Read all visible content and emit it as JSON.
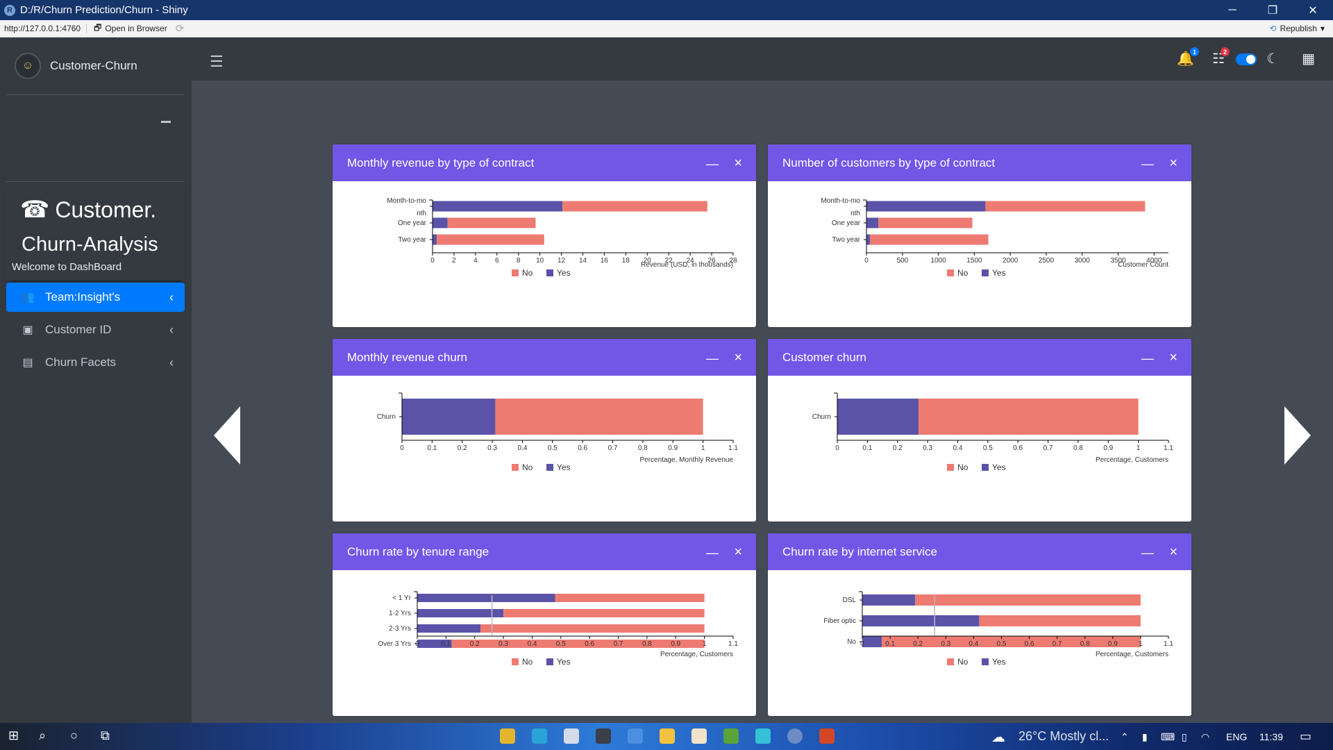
{
  "window": {
    "title": "D:/R/Churn Prediction/Churn - Shiny",
    "minimize": "─",
    "restore": "❐",
    "close": "✕"
  },
  "addressbar": {
    "url": "http://127.0.0.1:4760",
    "open_in_browser": "Open in Browser",
    "republish": "Republish"
  },
  "sidebar": {
    "brand": "Customer-Churn",
    "title_line1": "Customer.",
    "title_line2": "Churn-Analysis",
    "welcome": "Welcome to DashBoard",
    "items": [
      {
        "label": "Team:Insight's",
        "icon": "users-icon",
        "active": true
      },
      {
        "label": "Customer ID",
        "icon": "id-badge-icon",
        "active": false
      },
      {
        "label": "Churn Facets",
        "icon": "id-card-icon",
        "active": false
      }
    ]
  },
  "header": {
    "notifications_count": "1",
    "tasks_count": "2"
  },
  "colors": {
    "no": "#ed7b72",
    "yes": "#5a53a8",
    "card_header": "#7256e6",
    "accent": "#007bff"
  },
  "legend": {
    "no": "No",
    "yes": "Yes"
  },
  "chart_data": [
    {
      "id": "c1",
      "title": "Monthly revenue by type of contract",
      "type": "bar",
      "stacked": true,
      "orientation": "horizontal",
      "categories": [
        "Month-to-mo nth",
        "One year",
        "Two year"
      ],
      "series": [
        {
          "name": "Yes",
          "values": [
            12.1,
            1.4,
            0.4
          ]
        },
        {
          "name": "No",
          "values": [
            13.5,
            8.2,
            10.0
          ]
        }
      ],
      "xlabel": "Revenue (USD, in thousands)",
      "xlim": [
        0,
        28
      ],
      "xticks": [
        0,
        2,
        4,
        6,
        8,
        10,
        12,
        14,
        16,
        18,
        20,
        22,
        24,
        26,
        28
      ]
    },
    {
      "id": "c2",
      "title": "Number of customers by type of contract",
      "type": "bar",
      "stacked": true,
      "orientation": "horizontal",
      "categories": [
        "Month-to-mo nth",
        "One year",
        "Two year"
      ],
      "series": [
        {
          "name": "Yes",
          "values": [
            1655,
            166,
            48
          ]
        },
        {
          "name": "No",
          "values": [
            2220,
            1307,
            1647
          ]
        }
      ],
      "xlabel": "Customer Count",
      "xlim": [
        0,
        4200
      ],
      "xticks": [
        0,
        500,
        1000,
        1500,
        2000,
        2500,
        3000,
        3500,
        4000
      ]
    },
    {
      "id": "c3",
      "title": "Monthly revenue churn",
      "type": "bar",
      "stacked": true,
      "orientation": "horizontal",
      "categories": [
        "Churn"
      ],
      "series": [
        {
          "name": "Yes",
          "values": [
            0.31
          ]
        },
        {
          "name": "No",
          "values": [
            0.69
          ]
        }
      ],
      "xlabel": "Percentage, Monthly Revenue",
      "xlim": [
        0,
        1.1
      ],
      "xticks": [
        0,
        0.1,
        0.2,
        0.3,
        0.4,
        0.5,
        0.6,
        0.7,
        0.8,
        0.9,
        1,
        1.1
      ]
    },
    {
      "id": "c4",
      "title": "Customer churn",
      "type": "bar",
      "stacked": true,
      "orientation": "horizontal",
      "categories": [
        "Churn"
      ],
      "series": [
        {
          "name": "Yes",
          "values": [
            0.27
          ]
        },
        {
          "name": "No",
          "values": [
            0.73
          ]
        }
      ],
      "xlabel": "Percentage, Customers",
      "xlim": [
        0,
        1.1
      ],
      "xticks": [
        0,
        0.1,
        0.2,
        0.3,
        0.4,
        0.5,
        0.6,
        0.7,
        0.8,
        0.9,
        1,
        1.1
      ]
    },
    {
      "id": "c5",
      "title": "Churn rate by tenure range",
      "type": "bar",
      "stacked": true,
      "orientation": "horizontal",
      "categories": [
        "< 1 Yr",
        "1-2 Yrs",
        "2-3 Yrs",
        "Over 3 Yrs"
      ],
      "series": [
        {
          "name": "Yes",
          "values": [
            0.48,
            0.3,
            0.22,
            0.12
          ]
        },
        {
          "name": "No",
          "values": [
            0.52,
            0.7,
            0.78,
            0.88
          ]
        }
      ],
      "xlabel": "Percentage, Customers",
      "xlim": [
        0,
        1.1
      ],
      "xticks": [
        0,
        0.1,
        0.2,
        0.3,
        0.4,
        0.5,
        0.6,
        0.7,
        0.8,
        0.9,
        1,
        1.1
      ],
      "reference_line": 0.26
    },
    {
      "id": "c6",
      "title": "Churn rate by internet service",
      "type": "bar",
      "stacked": true,
      "orientation": "horizontal",
      "categories": [
        "DSL",
        "Fiber optic",
        "No"
      ],
      "series": [
        {
          "name": "Yes",
          "values": [
            0.19,
            0.42,
            0.07
          ]
        },
        {
          "name": "No",
          "values": [
            0.81,
            0.58,
            0.93
          ]
        }
      ],
      "xlabel": "Percentage, Customers",
      "xlim": [
        0,
        1.1
      ],
      "xticks": [
        0,
        0.1,
        0.2,
        0.3,
        0.4,
        0.5,
        0.6,
        0.7,
        0.8,
        0.9,
        1,
        1.1
      ],
      "reference_line": 0.26
    }
  ],
  "taskbar": {
    "weather": "26°C  Mostly cl...",
    "language": "ENG",
    "time": "11:39"
  }
}
